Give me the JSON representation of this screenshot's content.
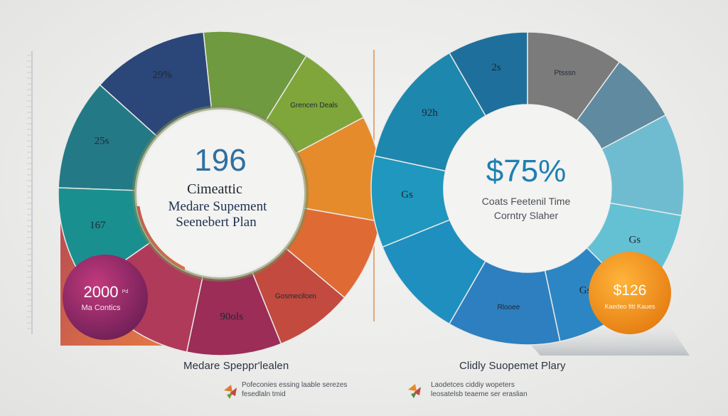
{
  "chart_data": [
    {
      "type": "donut",
      "center": {
        "value": "196",
        "line1": "Cimeattic",
        "line2": "Medare Supement",
        "line3": "Seenebert Plan"
      },
      "segments": [
        {
          "value": "29%",
          "label": "",
          "color": "#2b4678"
        },
        {
          "value": "",
          "label": "",
          "color": "#6f9a3f"
        },
        {
          "value": "",
          "label": "Grencen Deals",
          "color": "#7fa63b"
        },
        {
          "value": "25s",
          "label": "",
          "color": "#237a86"
        },
        {
          "value": "167",
          "label": "",
          "color": "#1a8f8f"
        },
        {
          "value": "",
          "label": "",
          "color": "#e58b2c"
        },
        {
          "value": "",
          "label": "",
          "color": "#e06a34"
        },
        {
          "value": "",
          "label": "Gosmecilcen",
          "color": "#c24a3f"
        },
        {
          "value": "90ols",
          "label": "",
          "color": "#9b2d57"
        },
        {
          "value": "",
          "label": "",
          "color": "#b03a59"
        }
      ],
      "badge": {
        "value": "2000",
        "unit": "Pd",
        "label": "Ma Contics",
        "color": "#9b2f6a"
      },
      "footer_title": "Medare Speppr'lealen",
      "footer_note": [
        "Pofeconies essing laable serezes",
        "fesedlaln tmid"
      ]
    },
    {
      "type": "donut",
      "center": {
        "value": "$75%",
        "line1": "Coats Feetenil Time",
        "line2": "Corntry Slaher"
      },
      "segments": [
        {
          "value": "2s",
          "label": "",
          "color": "#1f6f9c"
        },
        {
          "value": "",
          "label": "Ptsssn",
          "color": "#7b7b7b"
        },
        {
          "value": "",
          "label": "",
          "color": "#5f8aa0"
        },
        {
          "value": "",
          "label": "",
          "color": "#6fbcd0"
        },
        {
          "value": "92h",
          "label": "",
          "color": "#1e87ad"
        },
        {
          "value": "Gs",
          "label": "",
          "color": "#1f97be"
        },
        {
          "value": "",
          "label": "",
          "color": "#1f8fc0"
        },
        {
          "value": "Gs",
          "label": "",
          "color": "#63c1d3"
        },
        {
          "value": "Gs",
          "label": "",
          "color": "#2c86c3"
        },
        {
          "value": "",
          "label": "Rlooee",
          "color": "#2d7fc0"
        }
      ],
      "badge": {
        "value": "$126",
        "label": "Kaedeo fitt Kaues",
        "color": "#f39a1d"
      },
      "footer_title": "Clidly Suopemet Plary",
      "footer_note": [
        "Laodetces ciddiy wopeters",
        "leosatelsb teaeme ser eraslian"
      ]
    }
  ],
  "palette": {
    "background": "#ececeb",
    "axis": "#c9ccd0",
    "divider": "#d98a4a"
  }
}
